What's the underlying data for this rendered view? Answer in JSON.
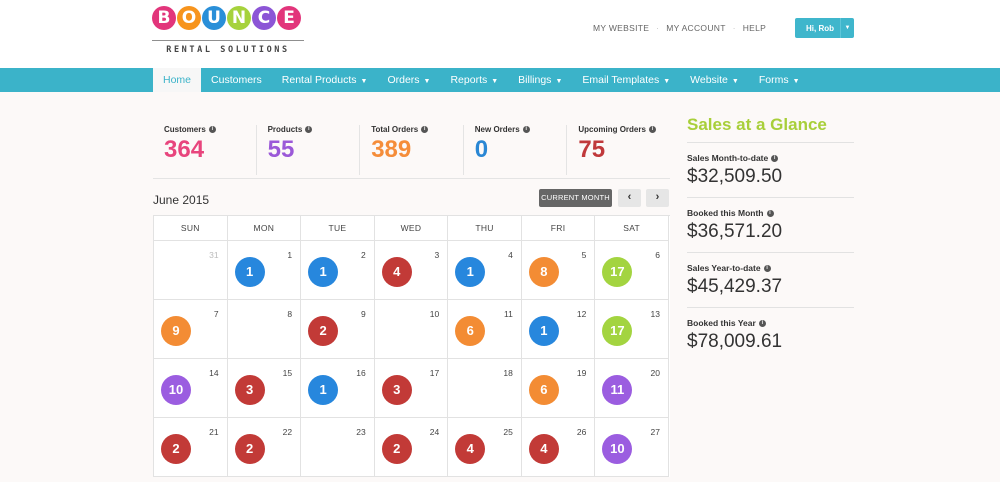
{
  "logo": {
    "letters": [
      "B",
      "O",
      "U",
      "N",
      "C",
      "E"
    ],
    "letter_colors": [
      "#e2357b",
      "#f7941d",
      "#2a8fd8",
      "#a6d23c",
      "#8c55d6",
      "#e2357b"
    ],
    "subtitle": "RENTAL SOLUTIONS"
  },
  "top_links": [
    "MY WEBSITE",
    "MY ACCOUNT",
    "HELP"
  ],
  "user": {
    "label": "Hi, Rob",
    "caret": "▼"
  },
  "nav": [
    {
      "label": "Home",
      "dropdown": false,
      "active": true
    },
    {
      "label": "Customers",
      "dropdown": false
    },
    {
      "label": "Rental Products",
      "dropdown": true
    },
    {
      "label": "Orders",
      "dropdown": true
    },
    {
      "label": "Reports",
      "dropdown": true
    },
    {
      "label": "Billings",
      "dropdown": true
    },
    {
      "label": "Email Templates",
      "dropdown": true
    },
    {
      "label": "Website",
      "dropdown": true
    },
    {
      "label": "Forms",
      "dropdown": true
    }
  ],
  "stats": [
    {
      "label": "Customers",
      "value": "364",
      "color": "#e8457d"
    },
    {
      "label": "Products",
      "value": "55",
      "color": "#9b59d8"
    },
    {
      "label": "Total Orders",
      "value": "389",
      "color": "#f58d3a"
    },
    {
      "label": "New Orders",
      "value": "0",
      "color": "#2a87d4"
    },
    {
      "label": "Upcoming Orders",
      "value": "75",
      "color": "#c0393b"
    }
  ],
  "calendar": {
    "title": "June 2015",
    "current_month_label": "CURRENT MONTH",
    "prev_label": "‹",
    "next_label": "›",
    "days_of_week": [
      "SUN",
      "MON",
      "TUE",
      "WED",
      "THU",
      "FRI",
      "SAT"
    ],
    "weeks": [
      [
        {
          "day": "31",
          "muted": true
        },
        {
          "day": "1",
          "count": "1",
          "color": "#2787dd"
        },
        {
          "day": "2",
          "count": "1",
          "color": "#2787dd"
        },
        {
          "day": "3",
          "count": "4",
          "color": "#c23a37"
        },
        {
          "day": "4",
          "count": "1",
          "color": "#2787dd"
        },
        {
          "day": "5",
          "count": "8",
          "color": "#f38c34"
        },
        {
          "day": "6",
          "count": "17",
          "color": "#a3d440"
        }
      ],
      [
        {
          "day": "7",
          "count": "9",
          "color": "#f38c34"
        },
        {
          "day": "8"
        },
        {
          "day": "9",
          "count": "2",
          "color": "#c23a37"
        },
        {
          "day": "10"
        },
        {
          "day": "11",
          "count": "6",
          "color": "#f38c34"
        },
        {
          "day": "12",
          "count": "1",
          "color": "#2787dd"
        },
        {
          "day": "13",
          "count": "17",
          "color": "#a3d440"
        }
      ],
      [
        {
          "day": "14",
          "count": "10",
          "color": "#9b5de0"
        },
        {
          "day": "15",
          "count": "3",
          "color": "#c23a37"
        },
        {
          "day": "16",
          "count": "1",
          "color": "#2787dd"
        },
        {
          "day": "17",
          "count": "3",
          "color": "#c23a37"
        },
        {
          "day": "18"
        },
        {
          "day": "19",
          "count": "6",
          "color": "#f38c34"
        },
        {
          "day": "20",
          "count": "11",
          "color": "#9b5de0"
        }
      ],
      [
        {
          "day": "21",
          "count": "2",
          "color": "#c23a37"
        },
        {
          "day": "22",
          "count": "2",
          "color": "#c23a37"
        },
        {
          "day": "23"
        },
        {
          "day": "24",
          "count": "2",
          "color": "#c23a37"
        },
        {
          "day": "25",
          "count": "4",
          "color": "#c23a37"
        },
        {
          "day": "26",
          "count": "4",
          "color": "#c23a37"
        },
        {
          "day": "27",
          "count": "10",
          "color": "#9b5de0"
        }
      ]
    ]
  },
  "glance": {
    "title": "Sales at a Glance",
    "items": [
      {
        "label": "Sales Month-to-date",
        "value": "$32,509.50"
      },
      {
        "label": "Booked this Month",
        "value": "$36,571.20"
      },
      {
        "label": "Sales Year-to-date",
        "value": "$45,429.37"
      },
      {
        "label": "Booked this Year",
        "value": "$78,009.61"
      }
    ]
  },
  "info_glyph": "i"
}
